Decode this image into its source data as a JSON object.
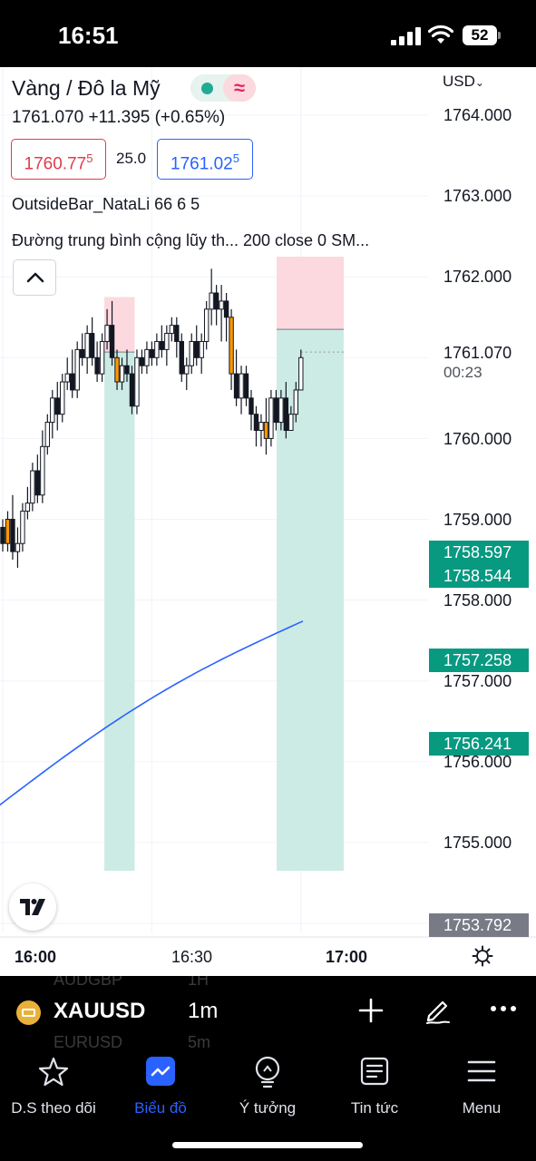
{
  "status_bar": {
    "time": "16:51",
    "battery": "52"
  },
  "header": {
    "title": "Vàng / Đô la Mỹ",
    "price_line": "1761.070  +11.395 (+0.65%)",
    "bid_main": "1760.77",
    "bid_sup": "5",
    "spread": "25.0",
    "ask_main": "1761.02",
    "ask_sup": "5",
    "indicator_1": "OutsideBar_NataLi 66 6 5",
    "indicator_2": "Đường trung bình cộng lũy th...   200 close 0 SM..."
  },
  "price_axis": {
    "currency": "USD",
    "ticks": [
      "1764.000",
      "1763.000",
      "1762.000",
      "1761.070",
      "1760.000",
      "1759.000",
      "1758.000",
      "1757.000",
      "1756.000",
      "1755.000"
    ],
    "countdown": "00:23",
    "labels": [
      "1758.597",
      "1758.544",
      "1757.258",
      "1756.241",
      "1753.792"
    ]
  },
  "time_axis": {
    "ticks": [
      "16:00",
      "16:30",
      "17:00"
    ]
  },
  "toolbar": {
    "symbol": "XAUUSD",
    "timeframe": "1m",
    "ghost_symbol_1": "AUDGBP",
    "ghost_tf_1": "1H",
    "ghost_symbol_2": "EURUSD",
    "ghost_tf_2": "5m"
  },
  "tabs": [
    {
      "label": "D.S theo dõi",
      "icon": "star-icon"
    },
    {
      "label": "Biểu đồ",
      "icon": "chart-icon",
      "active": true
    },
    {
      "label": "Ý tưởng",
      "icon": "lightbulb-icon"
    },
    {
      "label": "Tin tức",
      "icon": "news-icon"
    },
    {
      "label": "Menu",
      "icon": "menu-icon"
    }
  ],
  "colors": {
    "up": "#ffffff",
    "down": "#131722",
    "orange": "#ff9800",
    "ma": "#2962ff",
    "profit_zone": "#cdebe5",
    "loss_zone": "#fbd9df",
    "accent": "#2962ff"
  },
  "chart_data": {
    "type": "candlestick",
    "symbol": "XAUUSD",
    "interval": "1m",
    "ylim": [
      1754.6,
      1764.4
    ],
    "xlabel": "",
    "ylabel": "",
    "x_ticks": [
      "16:00",
      "16:30",
      "17:00"
    ],
    "last_price": 1761.07,
    "candles": [
      {
        "o": 1758.9,
        "h": 1759.0,
        "l": 1758.6,
        "c": 1758.7
      },
      {
        "o": 1758.7,
        "h": 1759.1,
        "l": 1758.6,
        "c": 1759.0
      },
      {
        "o": 1759.0,
        "h": 1759.3,
        "l": 1758.5,
        "c": 1758.6
      },
      {
        "o": 1758.6,
        "h": 1758.9,
        "l": 1758.4,
        "c": 1758.7
      },
      {
        "o": 1758.7,
        "h": 1759.2,
        "l": 1758.6,
        "c": 1759.1
      },
      {
        "o": 1759.1,
        "h": 1759.4,
        "l": 1759.0,
        "c": 1759.2
      },
      {
        "o": 1759.2,
        "h": 1759.7,
        "l": 1759.1,
        "c": 1759.6
      },
      {
        "o": 1759.6,
        "h": 1759.8,
        "l": 1759.2,
        "c": 1759.3
      },
      {
        "o": 1759.3,
        "h": 1760.1,
        "l": 1759.2,
        "c": 1759.9
      },
      {
        "o": 1759.9,
        "h": 1760.3,
        "l": 1759.8,
        "c": 1760.2
      },
      {
        "o": 1760.2,
        "h": 1760.6,
        "l": 1760.0,
        "c": 1760.5
      },
      {
        "o": 1760.5,
        "h": 1760.7,
        "l": 1760.1,
        "c": 1760.3
      },
      {
        "o": 1760.3,
        "h": 1760.8,
        "l": 1760.2,
        "c": 1760.7
      },
      {
        "o": 1760.7,
        "h": 1761.0,
        "l": 1760.6,
        "c": 1760.8
      },
      {
        "o": 1760.8,
        "h": 1761.1,
        "l": 1760.5,
        "c": 1760.6
      },
      {
        "o": 1760.6,
        "h": 1761.2,
        "l": 1760.5,
        "c": 1761.1
      },
      {
        "o": 1761.1,
        "h": 1761.3,
        "l": 1760.9,
        "c": 1761.0
      },
      {
        "o": 1761.0,
        "h": 1761.4,
        "l": 1760.8,
        "c": 1761.3
      },
      {
        "o": 1761.3,
        "h": 1761.5,
        "l": 1760.9,
        "c": 1761.0
      },
      {
        "o": 1761.0,
        "h": 1761.2,
        "l": 1760.7,
        "c": 1760.8
      },
      {
        "o": 1760.8,
        "h": 1761.3,
        "l": 1760.7,
        "c": 1761.2
      },
      {
        "o": 1761.2,
        "h": 1761.6,
        "l": 1761.1,
        "c": 1761.4
      },
      {
        "o": 1761.4,
        "h": 1761.7,
        "l": 1760.9,
        "c": 1761.0
      },
      {
        "o": 1761.0,
        "h": 1761.1,
        "l": 1760.6,
        "c": 1760.7
      },
      {
        "o": 1760.7,
        "h": 1761.0,
        "l": 1760.6,
        "c": 1760.9
      },
      {
        "o": 1760.9,
        "h": 1761.1,
        "l": 1760.7,
        "c": 1760.8
      },
      {
        "o": 1760.8,
        "h": 1760.9,
        "l": 1760.3,
        "c": 1760.4
      },
      {
        "o": 1760.4,
        "h": 1761.1,
        "l": 1760.3,
        "c": 1761.0
      },
      {
        "o": 1761.0,
        "h": 1761.1,
        "l": 1760.8,
        "c": 1760.9
      },
      {
        "o": 1760.9,
        "h": 1761.2,
        "l": 1760.8,
        "c": 1761.1
      },
      {
        "o": 1761.1,
        "h": 1761.2,
        "l": 1760.9,
        "c": 1761.0
      },
      {
        "o": 1761.0,
        "h": 1761.3,
        "l": 1760.9,
        "c": 1761.2
      },
      {
        "o": 1761.2,
        "h": 1761.4,
        "l": 1761.0,
        "c": 1761.1
      },
      {
        "o": 1761.1,
        "h": 1761.4,
        "l": 1760.9,
        "c": 1761.3
      },
      {
        "o": 1761.3,
        "h": 1761.5,
        "l": 1761.2,
        "c": 1761.4
      },
      {
        "o": 1761.4,
        "h": 1761.5,
        "l": 1761.0,
        "c": 1761.2
      },
      {
        "o": 1761.2,
        "h": 1761.3,
        "l": 1760.7,
        "c": 1760.8
      },
      {
        "o": 1760.8,
        "h": 1761.0,
        "l": 1760.6,
        "c": 1760.9
      },
      {
        "o": 1760.9,
        "h": 1761.3,
        "l": 1760.8,
        "c": 1761.2
      },
      {
        "o": 1761.2,
        "h": 1761.4,
        "l": 1760.9,
        "c": 1761.0
      },
      {
        "o": 1761.0,
        "h": 1761.3,
        "l": 1760.8,
        "c": 1761.2
      },
      {
        "o": 1761.2,
        "h": 1761.7,
        "l": 1761.1,
        "c": 1761.6
      },
      {
        "o": 1761.6,
        "h": 1762.1,
        "l": 1761.4,
        "c": 1761.8
      },
      {
        "o": 1761.8,
        "h": 1761.9,
        "l": 1761.4,
        "c": 1761.6
      },
      {
        "o": 1761.6,
        "h": 1761.9,
        "l": 1761.2,
        "c": 1761.7
      },
      {
        "o": 1761.7,
        "h": 1761.8,
        "l": 1761.2,
        "c": 1761.5
      },
      {
        "o": 1761.5,
        "h": 1761.6,
        "l": 1760.6,
        "c": 1760.8
      },
      {
        "o": 1760.8,
        "h": 1761.1,
        "l": 1760.4,
        "c": 1760.5
      },
      {
        "o": 1760.5,
        "h": 1760.9,
        "l": 1760.3,
        "c": 1760.8
      },
      {
        "o": 1760.8,
        "h": 1760.9,
        "l": 1760.4,
        "c": 1760.5
      },
      {
        "o": 1760.5,
        "h": 1760.6,
        "l": 1760.1,
        "c": 1760.3
      },
      {
        "o": 1760.3,
        "h": 1760.4,
        "l": 1759.9,
        "c": 1760.1
      },
      {
        "o": 1760.1,
        "h": 1760.3,
        "l": 1759.9,
        "c": 1760.2
      },
      {
        "o": 1760.2,
        "h": 1760.5,
        "l": 1759.8,
        "c": 1760.0
      },
      {
        "o": 1760.0,
        "h": 1760.6,
        "l": 1759.9,
        "c": 1760.5
      },
      {
        "o": 1760.5,
        "h": 1760.6,
        "l": 1760.1,
        "c": 1760.2
      },
      {
        "o": 1760.2,
        "h": 1760.6,
        "l": 1760.1,
        "c": 1760.5
      },
      {
        "o": 1760.5,
        "h": 1760.7,
        "l": 1760.0,
        "c": 1760.1
      },
      {
        "o": 1760.1,
        "h": 1760.4,
        "l": 1760.1,
        "c": 1760.3
      },
      {
        "o": 1760.3,
        "h": 1760.7,
        "l": 1760.2,
        "c": 1760.6
      },
      {
        "o": 1760.6,
        "h": 1761.1,
        "l": 1760.6,
        "c": 1761.0
      }
    ],
    "moving_average": {
      "type": "SMA",
      "length": 200,
      "source": "close",
      "start": 1755.45,
      "end": 1757.74
    },
    "positions": [
      {
        "side": "long",
        "entry": 1761.07,
        "stop": 1761.75,
        "target": 1754.65,
        "from_candle": 21,
        "to_candle": 26
      },
      {
        "side": "long",
        "entry": 1761.35,
        "stop": 1762.25,
        "target": 1754.65,
        "from_candle": 42,
        "to_candle": 51
      }
    ]
  }
}
